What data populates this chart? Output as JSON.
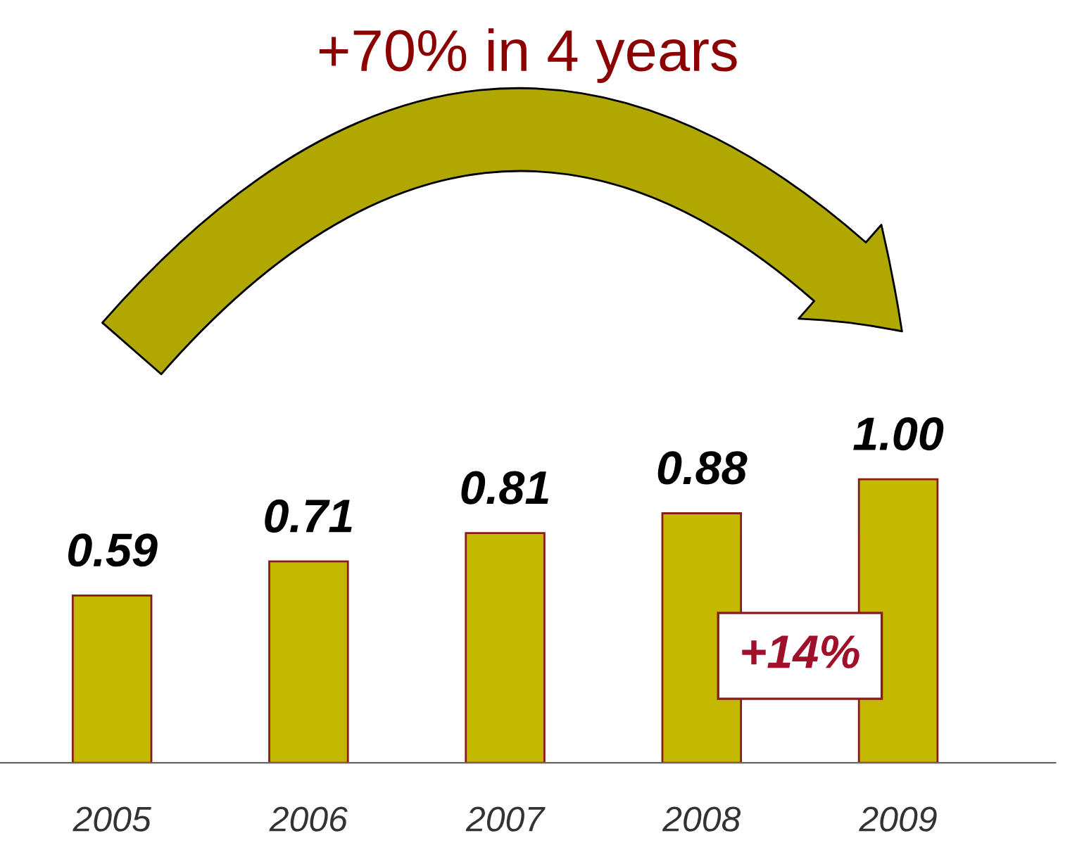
{
  "chart_data": {
    "type": "bar",
    "title": "+70% in 4 years",
    "categories": [
      "2005",
      "2006",
      "2007",
      "2008",
      "2009"
    ],
    "values": [
      0.59,
      0.71,
      0.81,
      0.88,
      1.0
    ],
    "value_labels": [
      "0.59",
      "0.71",
      "0.81",
      "0.88",
      "1.00"
    ],
    "color": "#c4b900",
    "annotations": [
      "+14%"
    ]
  }
}
